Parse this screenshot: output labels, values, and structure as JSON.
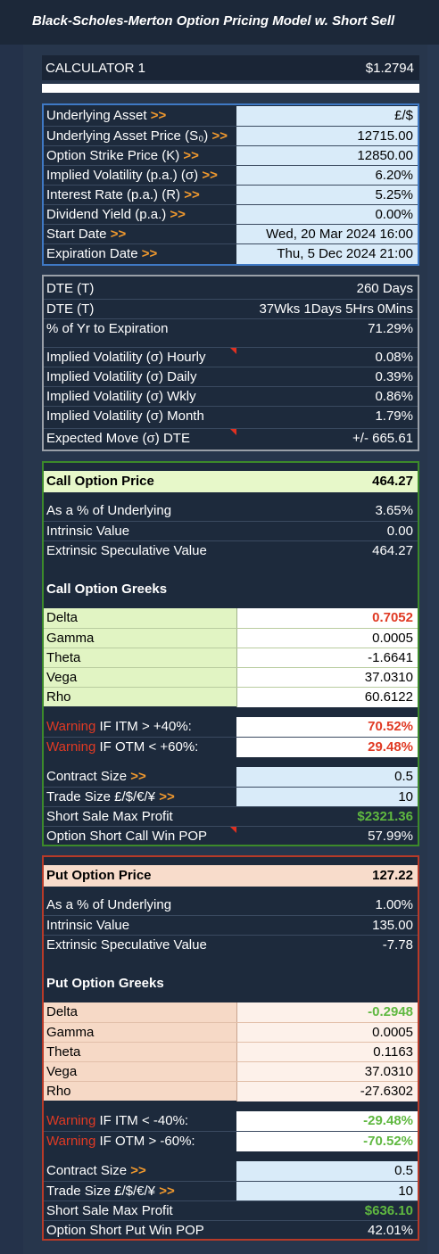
{
  "title": "Black-Scholes-Merton Option Pricing Model w. Short Sell",
  "calculator": {
    "name": "CALCULATOR 1",
    "value": "$1.2794"
  },
  "inputs": [
    {
      "label": "Underlying Asset",
      "value": "£/$"
    },
    {
      "label": "Underlying Asset Price (S₀)",
      "value": "12715.00"
    },
    {
      "label": "Option Strike Price (K)",
      "value": "12850.00"
    },
    {
      "label": "Implied Volatility (p.a.) (σ)",
      "value": "6.20%"
    },
    {
      "label": "Interest Rate (p.a.) (R)",
      "value": "5.25%"
    },
    {
      "label": "Dividend Yield (p.a.)",
      "value": "0.00%"
    },
    {
      "label": "Start Date",
      "value": "Wed, 20 Mar 2024 16:00"
    },
    {
      "label": "Expiration Date",
      "value": "Thu, 5 Dec 2024 21:00"
    }
  ],
  "arrow": ">>",
  "time": [
    {
      "label": "DTE (T)",
      "value": "260 Days"
    },
    {
      "label": "DTE (T)",
      "value": "37Wks 1Days 5Hrs 0Mins"
    },
    {
      "label": "% of Yr to Expiration",
      "value": "71.29%"
    }
  ],
  "vol": [
    {
      "label": "Implied Volatility (σ) Hourly",
      "value": "0.08%"
    },
    {
      "label": "Implied Volatility (σ) Daily",
      "value": "0.39%"
    },
    {
      "label": "Implied Volatility (σ) Wkly",
      "value": "0.86%"
    },
    {
      "label": "Implied Volatility (σ) Month",
      "value": "1.79%"
    },
    {
      "label": "Expected Move (σ) DTE",
      "value": "+/- 665.61"
    }
  ],
  "call": {
    "price_label": "Call Option Price",
    "price": "464.27",
    "stats": [
      {
        "label": "As a % of Underlying",
        "value": "3.65%"
      },
      {
        "label": "Intrinsic Value",
        "value": "0.00"
      },
      {
        "label": "Extrinsic Speculative Value",
        "value": "464.27"
      }
    ],
    "greeks_label": "Call Option Greeks",
    "greeks": [
      {
        "label": "Delta",
        "value": "0.7052"
      },
      {
        "label": "Gamma",
        "value": "0.0005"
      },
      {
        "label": "Theta",
        "value": "-1.6641"
      },
      {
        "label": "Vega",
        "value": "37.0310"
      },
      {
        "label": "Rho",
        "value": "60.6122"
      }
    ],
    "warn_word": "Warning",
    "warnings": [
      {
        "label": " IF ITM > +40%:",
        "value": "70.52%"
      },
      {
        "label": " IF OTM < +60%:",
        "value": "29.48%"
      }
    ],
    "contract": [
      {
        "label": "Contract Size",
        "value": "0.5"
      },
      {
        "label": "Trade Size £/$/€/¥",
        "value": "10"
      }
    ],
    "profit": {
      "label": "Short Sale Max Profit",
      "value": "$2321.36"
    },
    "pop": {
      "label": "Option Short Call Win POP",
      "value": "57.99%"
    }
  },
  "put": {
    "price_label": "Put Option Price",
    "price": "127.22",
    "stats": [
      {
        "label": "As a % of Underlying",
        "value": "1.00%"
      },
      {
        "label": "Intrinsic Value",
        "value": "135.00"
      },
      {
        "label": "Extrinsic Speculative Value",
        "value": "-7.78"
      }
    ],
    "greeks_label": "Put Option Greeks",
    "greeks": [
      {
        "label": "Delta",
        "value": "-0.2948"
      },
      {
        "label": "Gamma",
        "value": "0.0005"
      },
      {
        "label": "Theta",
        "value": "0.1163"
      },
      {
        "label": "Vega",
        "value": "37.0310"
      },
      {
        "label": "Rho",
        "value": "-27.6302"
      }
    ],
    "warn_word": "Warning",
    "warnings": [
      {
        "label": " IF ITM < -40%:",
        "value": "-29.48%"
      },
      {
        "label": " IF OTM > -60%:",
        "value": "-70.52%"
      }
    ],
    "contract": [
      {
        "label": "Contract Size",
        "value": "0.5"
      },
      {
        "label": "Trade Size £/$/€/¥",
        "value": "10"
      }
    ],
    "profit": {
      "label": "Short Sale Max Profit",
      "value": "$636.10"
    },
    "pop": {
      "label": "Option Short Put Win POP",
      "value": "42.01%"
    }
  }
}
